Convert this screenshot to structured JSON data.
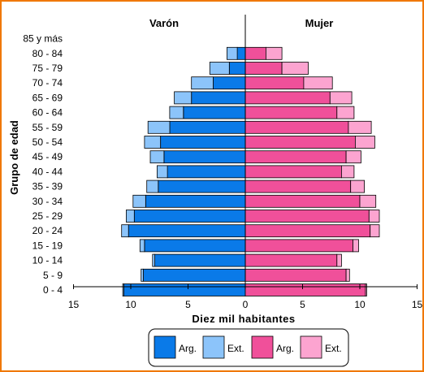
{
  "chart_data": {
    "type": "bar",
    "orientation": "horizontal-population-pyramid",
    "sex_labels": {
      "left": "Varón",
      "right": "Mujer"
    },
    "ylabel": "Grupo de edad",
    "xlabel": "Diez mil habitantes",
    "xticks": [
      15,
      10,
      5,
      0,
      5,
      10,
      15
    ],
    "xlim": [
      -15,
      15
    ],
    "categories": [
      "0 - 4",
      "5 - 9",
      "10 - 14",
      "15 - 19",
      "20 - 24",
      "25 - 29",
      "30 - 34",
      "35 - 39",
      "40 - 44",
      "45 - 49",
      "50 - 54",
      "55 - 59",
      "60 - 64",
      "65 - 69",
      "70 - 74",
      "75 - 79",
      "80 - 84",
      "85 y más"
    ],
    "series": [
      {
        "name": "Arg.",
        "side": "left",
        "stack": "male",
        "color": "#0a7ae8",
        "values": [
          10.6,
          8.9,
          7.9,
          8.8,
          10.2,
          9.7,
          8.7,
          7.6,
          6.8,
          7.1,
          7.4,
          6.6,
          5.4,
          4.7,
          2.8,
          1.4,
          0.7,
          0
        ]
      },
      {
        "name": "Ext.",
        "side": "left",
        "stack": "male",
        "color": "#8cc4fa",
        "values": [
          0.1,
          0.2,
          0.2,
          0.4,
          0.6,
          0.7,
          1.1,
          1.0,
          0.9,
          1.2,
          1.4,
          1.9,
          1.2,
          1.5,
          1.9,
          1.7,
          0.9,
          0
        ]
      },
      {
        "name": "Arg.",
        "side": "right",
        "stack": "female",
        "color": "#f0509a",
        "values": [
          10.5,
          8.8,
          8.0,
          9.4,
          10.9,
          10.8,
          10.0,
          9.2,
          8.4,
          8.8,
          9.6,
          9.0,
          8.0,
          7.4,
          5.1,
          3.2,
          1.8,
          0
        ]
      },
      {
        "name": "Ext.",
        "side": "right",
        "stack": "female",
        "color": "#fca4d0",
        "values": [
          0.1,
          0.3,
          0.4,
          0.5,
          0.8,
          0.9,
          1.4,
          1.2,
          1.1,
          1.3,
          1.7,
          2.0,
          1.5,
          1.9,
          2.5,
          2.3,
          1.4,
          0
        ]
      }
    ],
    "legend": {
      "placement": "bottom",
      "items": [
        {
          "label": "Arg.",
          "color": "#0a7ae8"
        },
        {
          "label": "Ext.",
          "color": "#8cc4fa"
        },
        {
          "label": "Arg.",
          "color": "#f0509a"
        },
        {
          "label": "Ext.",
          "color": "#fca4d0"
        }
      ]
    },
    "grid": false
  }
}
